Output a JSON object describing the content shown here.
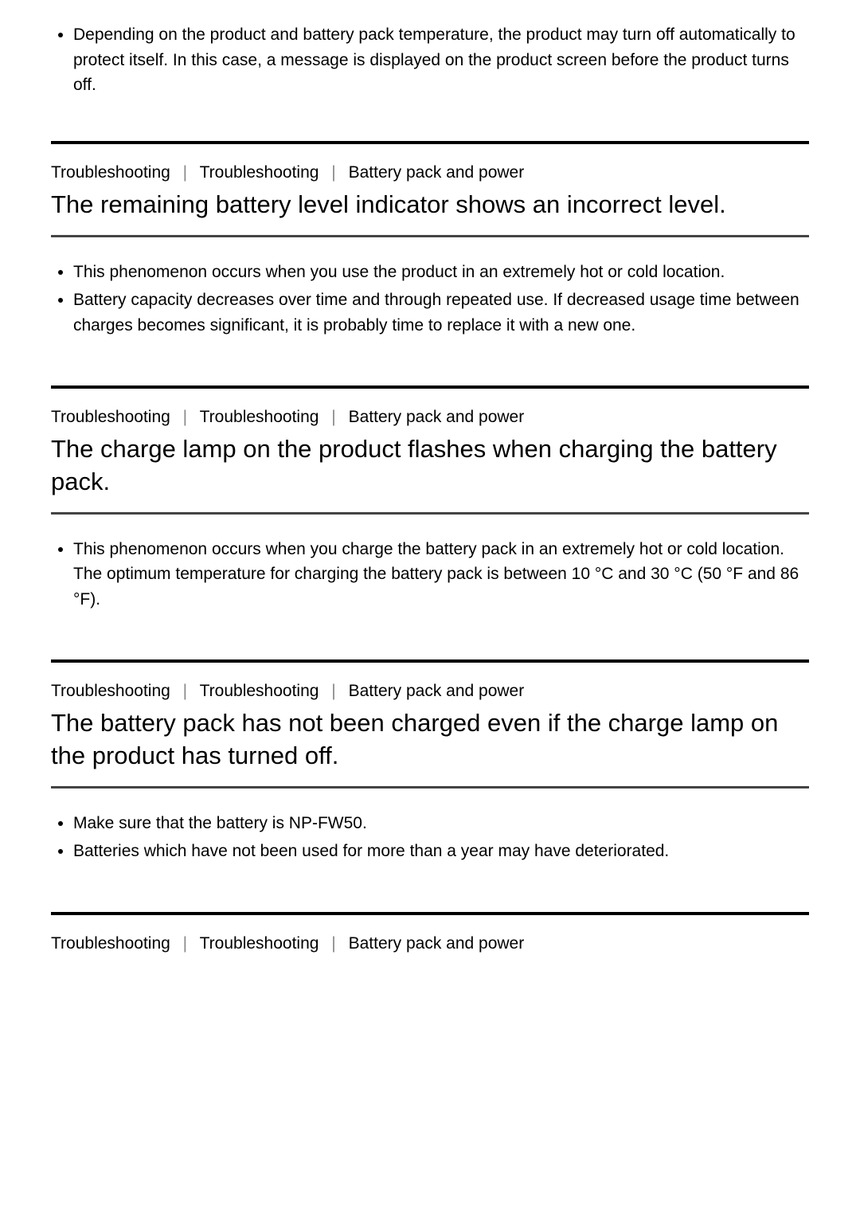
{
  "intro": {
    "items": [
      "Depending on the product and battery pack temperature, the product may turn off automatically to protect itself. In this case, a message is displayed on the product screen before the product turns off."
    ]
  },
  "breadcrumb": {
    "item1": "Troubleshooting",
    "item2": "Troubleshooting",
    "item3": "Battery pack and power"
  },
  "sections": [
    {
      "title": "The remaining battery level indicator shows an incorrect level.",
      "items": [
        "This phenomenon occurs when you use the product in an extremely hot or cold location.",
        "Battery capacity decreases over time and through repeated use. If decreased usage time between charges becomes significant, it is probably time to replace it with a new one."
      ]
    },
    {
      "title": "The charge lamp on the product flashes when charging the battery pack.",
      "items": [
        "This phenomenon occurs when you charge the battery pack in an extremely hot or cold location. The optimum temperature for charging the battery pack is between 10 °C and 30 °C (50 °F and 86 °F)."
      ]
    },
    {
      "title": "The battery pack has not been charged even if the charge lamp on the product has turned off.",
      "items": [
        "Make sure that the battery is NP-FW50.",
        "Batteries which have not been used for more than a year may have deteriorated."
      ]
    }
  ]
}
